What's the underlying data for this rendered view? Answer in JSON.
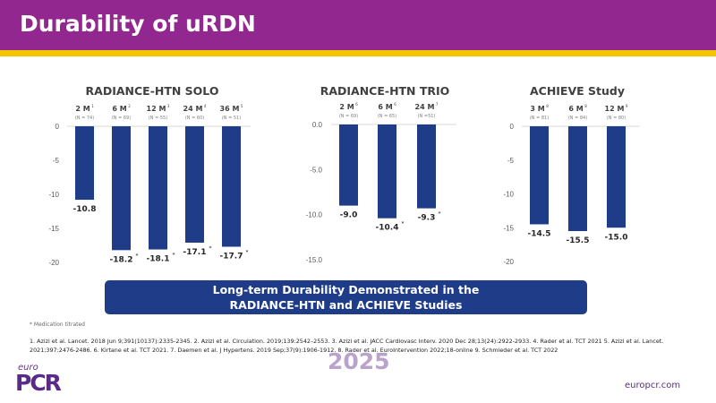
{
  "header": {
    "title": "Durability of uRDN"
  },
  "colors": {
    "purple": "#92278f",
    "yellow": "#f5c400",
    "bar": "#1f3c88"
  },
  "chart_data": [
    {
      "type": "bar",
      "title": "RADIANCE-HTN SOLO",
      "categories": [
        "2 M",
        "6 M",
        "12 M",
        "24 M",
        "36 M"
      ],
      "superscripts": [
        "1",
        "2",
        "3",
        "4",
        "5"
      ],
      "n_labels": [
        "(N = 74)",
        "(N = 69)",
        "(N = 55)",
        "(N = 60)",
        "(N = 51)"
      ],
      "values": [
        -10.8,
        -18.2,
        -18.1,
        -17.1,
        -17.7
      ],
      "value_labels": [
        "-10.8",
        "-18.2",
        "-18.1",
        "-17.1",
        "-17.7"
      ],
      "starred": [
        false,
        true,
        true,
        true,
        true
      ],
      "ylim": [
        -20,
        0
      ],
      "yticks": [
        "0",
        "-5",
        "-10",
        "-15",
        "-20"
      ]
    },
    {
      "type": "bar",
      "title": "RADIANCE-HTN TRIO",
      "categories": [
        "2 M",
        "6 M",
        "24 M"
      ],
      "superscripts": [
        "6",
        "6",
        "7"
      ],
      "n_labels": [
        "(N = 69)",
        "(N = 65)",
        "(N =51)"
      ],
      "values": [
        -9.0,
        -10.4,
        -9.3
      ],
      "value_labels": [
        "-9.0",
        "-10.4",
        "-9.3"
      ],
      "starred": [
        false,
        true,
        true
      ],
      "ylim": [
        -15,
        0
      ],
      "yticks": [
        "0.0",
        "-5.0",
        "-10.0",
        "-15.0"
      ]
    },
    {
      "type": "bar",
      "title": "ACHIEVE Study",
      "categories": [
        "3 M",
        "6 M",
        "12 M"
      ],
      "superscripts": [
        "8",
        "8",
        "9"
      ],
      "n_labels": [
        "(N = 81)",
        "(N = 84)",
        "(N = 80)"
      ],
      "values": [
        -14.5,
        -15.5,
        -15.0
      ],
      "value_labels": [
        "-14.5",
        "-15.5",
        "-15.0"
      ],
      "starred": [
        false,
        false,
        false
      ],
      "ylim": [
        -20,
        0
      ],
      "yticks": [
        "0",
        "-5",
        "-10",
        "-15",
        "-20"
      ]
    }
  ],
  "banner": {
    "line1": "Long-term Durability Demonstrated in the",
    "line2": "RADIANCE-HTN and ACHIEVE Studies"
  },
  "footnote": "* Medication titrated",
  "references": "1. Azizi et al. Lancet. 2018 Jun 9;391(10137):2335-2345. 2. Azizi et al. Circulation. 2019;139:2542–2553. 3. Azizi et al. JACC Cardiovasc Interv. 2020 Dec 28;13(24):2922-2933. 4. Rader et al. TCT 2021 5. Azizi et al. Lancet. 2021;397:2476-2486. 6. Kirtane et al. TCT 2021. 7. Daemen et al. J Hypertens. 2019 Sep;37(9):1906-1912. 8. Rader et al. EuroIntervention 2022;18-online 9. Schmieder et al. TCT 2022",
  "footer": {
    "logo_small": "euro",
    "logo_big": "PCR",
    "year": "2025",
    "site": "europcr.com"
  }
}
